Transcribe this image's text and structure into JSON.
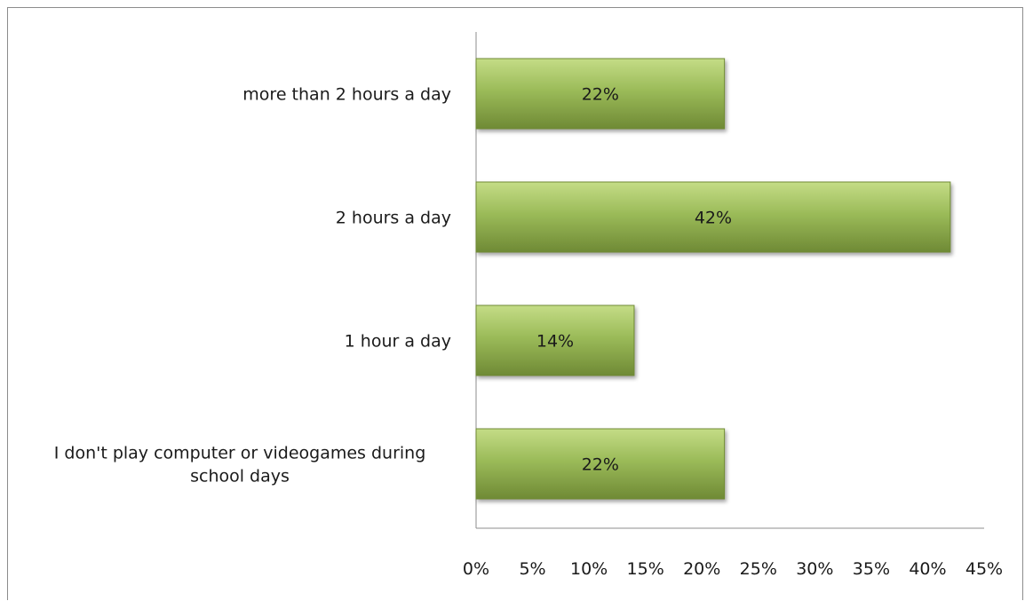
{
  "chart_data": {
    "type": "bar",
    "orientation": "horizontal",
    "categories": [
      "more than 2 hours a day",
      "2 hours a day",
      "1 hour a day",
      "I don't play computer or videogames during school days"
    ],
    "category_label_lines": [
      [
        "more than 2 hours a day"
      ],
      [
        "2 hours a day"
      ],
      [
        "1 hour a day"
      ],
      [
        "I don't play computer or videogames during",
        "school days"
      ]
    ],
    "values": [
      22,
      42,
      14,
      22
    ],
    "data_labels": [
      "22%",
      "42%",
      "14%",
      "22%"
    ],
    "xlim": [
      0,
      45
    ],
    "x_ticks": [
      0,
      5,
      10,
      15,
      20,
      25,
      30,
      35,
      40,
      45
    ],
    "x_tick_labels": [
      "0%",
      "5%",
      "10%",
      "15%",
      "20%",
      "25%",
      "30%",
      "35%",
      "40%",
      "45%"
    ],
    "grid": false,
    "legend": "none",
    "bar_color": "#9bbb59",
    "bar_color_light": "#c4dc86",
    "bar_color_dark": "#6f8a35"
  }
}
